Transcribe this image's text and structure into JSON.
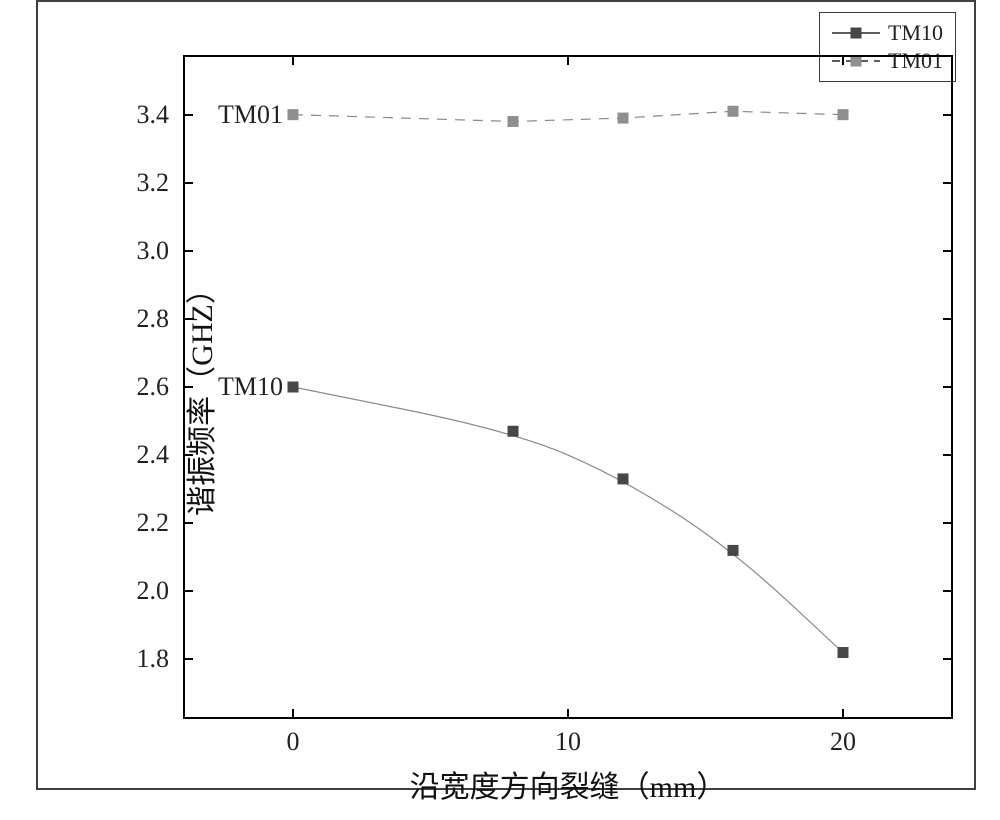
{
  "chart": {
    "type": "line",
    "background_color": "#ffffff",
    "outer_border_color": "#3f3f3f",
    "axis_color": "#000000",
    "xlabel": "沿宽度方向裂缝（mm）",
    "ylabel": "谐振频率（GHZ）",
    "label_fontsize": 30,
    "tick_fontsize": 26,
    "text_color": "#222222",
    "xlim": [
      -4,
      24
    ],
    "ylim": [
      1.66,
      3.54
    ],
    "xticks": [
      0,
      10,
      20
    ],
    "yticks": [
      1.8,
      2.0,
      2.2,
      2.4,
      2.6,
      2.8,
      3.0,
      3.2,
      3.4
    ],
    "ytick_labels": [
      "1.8",
      "2.0",
      "2.2",
      "2.4",
      "2.6",
      "2.8",
      "3.0",
      "3.2",
      "3.4"
    ],
    "series": [
      {
        "name": "TM10",
        "annotation": "TM10",
        "x": [
          0,
          8,
          12,
          16,
          20
        ],
        "y": [
          2.6,
          2.47,
          2.33,
          2.12,
          1.82
        ],
        "line_style": "solid",
        "line_color": "#8a8a8a",
        "line_width": 1.2,
        "marker": "square",
        "marker_color": "#474747",
        "marker_size": 11,
        "legend_marker_color": "#474747"
      },
      {
        "name": "TM01",
        "annotation": "TM01",
        "x": [
          0,
          8,
          12,
          16,
          20
        ],
        "y": [
          3.4,
          3.38,
          3.39,
          3.41,
          3.4
        ],
        "line_style": "dashed",
        "line_color": "#8a8a8a",
        "line_width": 1.2,
        "marker": "square",
        "marker_color": "#8f8f8f",
        "marker_size": 11,
        "legend_marker_color": "#8f8f8f"
      }
    ],
    "legend": {
      "position": "top-right",
      "border_color": "#3a3a3a",
      "items": [
        "TM10",
        "TM01"
      ]
    }
  }
}
